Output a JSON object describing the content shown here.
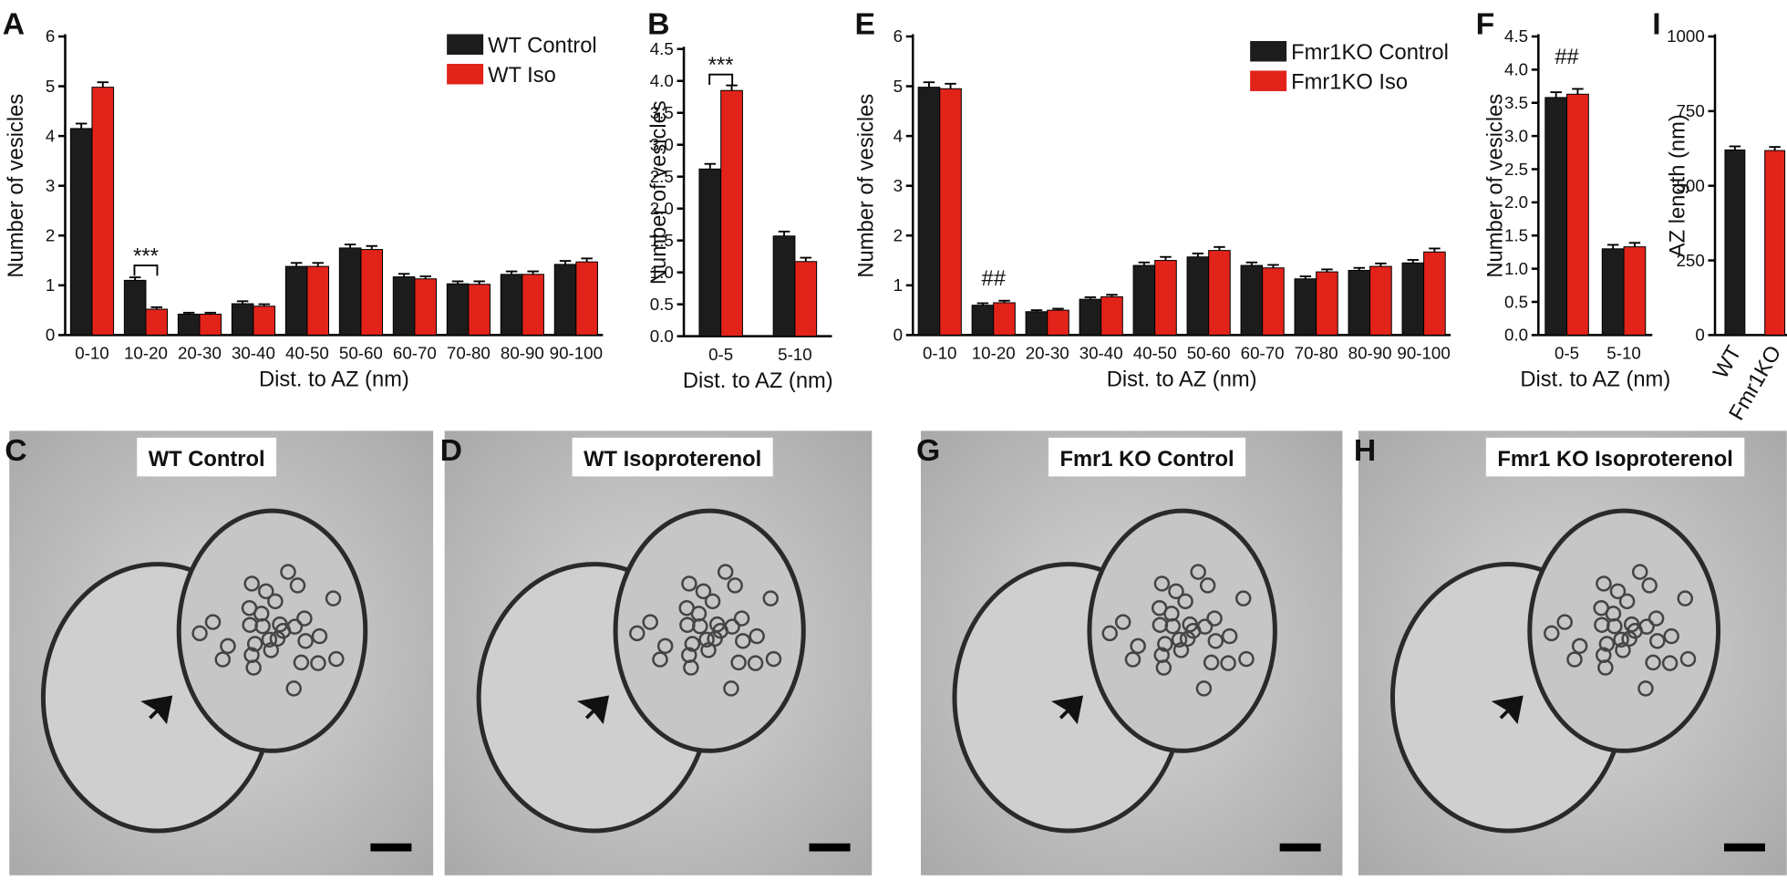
{
  "chart_data": [
    {
      "type": "bar",
      "panel": "A",
      "x_label": "Dist. to AZ (nm)",
      "y_label": "Number of vesicles",
      "categories": [
        "0-10",
        "10-20",
        "20-30",
        "30-40",
        "40-50",
        "50-60",
        "60-70",
        "70-80",
        "80-90",
        "90-100"
      ],
      "series": [
        {
          "name": "WT Control",
          "color": "#1c1c1c",
          "values": [
            4.15,
            1.1,
            0.42,
            0.63,
            1.38,
            1.75,
            1.17,
            1.03,
            1.22,
            1.42
          ],
          "errors": [
            0.1,
            0.06,
            0.03,
            0.05,
            0.07,
            0.07,
            0.06,
            0.05,
            0.06,
            0.07
          ]
        },
        {
          "name": "WT Iso",
          "color": "#e2231a",
          "values": [
            4.98,
            0.52,
            0.42,
            0.58,
            1.38,
            1.72,
            1.13,
            1.02,
            1.22,
            1.47
          ],
          "errors": [
            0.1,
            0.04,
            0.03,
            0.04,
            0.07,
            0.07,
            0.05,
            0.06,
            0.06,
            0.07
          ]
        }
      ],
      "ylim": [
        0,
        6
      ],
      "yticks": [
        0,
        1,
        2,
        3,
        4,
        5,
        6
      ],
      "annotation": "***"
    },
    {
      "type": "bar",
      "panel": "B",
      "x_label": "Dist. to AZ (nm)",
      "y_label": "Number of vesicles",
      "categories": [
        "0-5",
        "5-10"
      ],
      "series": [
        {
          "name": "WT Control",
          "color": "#1c1c1c",
          "values": [
            2.62,
            1.57
          ],
          "errors": [
            0.08,
            0.07
          ]
        },
        {
          "name": "WT Iso",
          "color": "#e2231a",
          "values": [
            3.85,
            1.17
          ],
          "errors": [
            0.08,
            0.06
          ]
        }
      ],
      "ylim": [
        0,
        4.5
      ],
      "yticks": [
        {
          "value": 0,
          "label": "0.0"
        },
        0.5,
        {
          "value": 1,
          "label": "1.0"
        },
        1.5,
        {
          "value": 2,
          "label": "2.0"
        },
        2.5,
        {
          "value": 3,
          "label": "3.0"
        },
        3.5,
        {
          "value": 4,
          "label": "4.0"
        },
        4.5
      ],
      "annotation": "***"
    },
    {
      "type": "bar",
      "panel": "E",
      "x_label": "Dist. to AZ (nm)",
      "y_label": "Number of vesicles",
      "categories": [
        "0-10",
        "10-20",
        "20-30",
        "30-40",
        "40-50",
        "50-60",
        "60-70",
        "70-80",
        "80-90",
        "90-100"
      ],
      "series": [
        {
          "name": "Fmr1KO Control",
          "color": "#1c1c1c",
          "values": [
            4.98,
            0.6,
            0.47,
            0.72,
            1.4,
            1.57,
            1.4,
            1.13,
            1.3,
            1.45
          ],
          "errors": [
            0.1,
            0.04,
            0.03,
            0.04,
            0.06,
            0.07,
            0.06,
            0.05,
            0.05,
            0.06
          ]
        },
        {
          "name": "Fmr1KO Iso",
          "color": "#e2231a",
          "values": [
            4.95,
            0.65,
            0.5,
            0.77,
            1.5,
            1.7,
            1.35,
            1.27,
            1.38,
            1.67
          ],
          "errors": [
            0.1,
            0.04,
            0.03,
            0.04,
            0.07,
            0.07,
            0.06,
            0.05,
            0.06,
            0.07
          ]
        }
      ],
      "ylim": [
        0,
        6
      ],
      "yticks": [
        0,
        1,
        2,
        3,
        4,
        5,
        6
      ],
      "annotation": "##"
    },
    {
      "type": "bar",
      "panel": "F",
      "x_label": "Dist. to AZ (nm)",
      "y_label": "Number of vesicles",
      "categories": [
        "0-5",
        "5-10"
      ],
      "series": [
        {
          "name": "Fmr1KO Control",
          "color": "#1c1c1c",
          "values": [
            3.58,
            1.3
          ],
          "errors": [
            0.08,
            0.06
          ]
        },
        {
          "name": "Fmr1KO Iso",
          "color": "#e2231a",
          "values": [
            3.63,
            1.33
          ],
          "errors": [
            0.08,
            0.06
          ]
        }
      ],
      "ylim": [
        0,
        4.5
      ],
      "yticks": [
        {
          "value": 0,
          "label": "0.0"
        },
        0.5,
        {
          "value": 1,
          "label": "1.0"
        },
        1.5,
        {
          "value": 2,
          "label": "2.0"
        },
        2.5,
        {
          "value": 3,
          "label": "3.0"
        },
        3.5,
        {
          "value": 4,
          "label": "4.0"
        },
        4.5
      ],
      "annotation": "##"
    },
    {
      "type": "bar",
      "panel": "I",
      "y_label": "AZ length (nm)",
      "categories": [
        "WT",
        "Fmr1KO"
      ],
      "values": [
        620,
        618
      ],
      "errors": [
        12,
        12
      ],
      "colors": [
        "#1c1c1c",
        "#e2231a"
      ],
      "ylim": [
        0,
        1000
      ],
      "yticks": [
        0,
        250,
        500,
        750,
        1000
      ]
    }
  ],
  "images": [
    {
      "panel": "C",
      "label": "WT Control"
    },
    {
      "panel": "D",
      "label": "WT Isoproterenol"
    },
    {
      "panel": "G",
      "label": "Fmr1 KO Control"
    },
    {
      "panel": "H",
      "label": "Fmr1 KO Isoproterenol"
    }
  ]
}
